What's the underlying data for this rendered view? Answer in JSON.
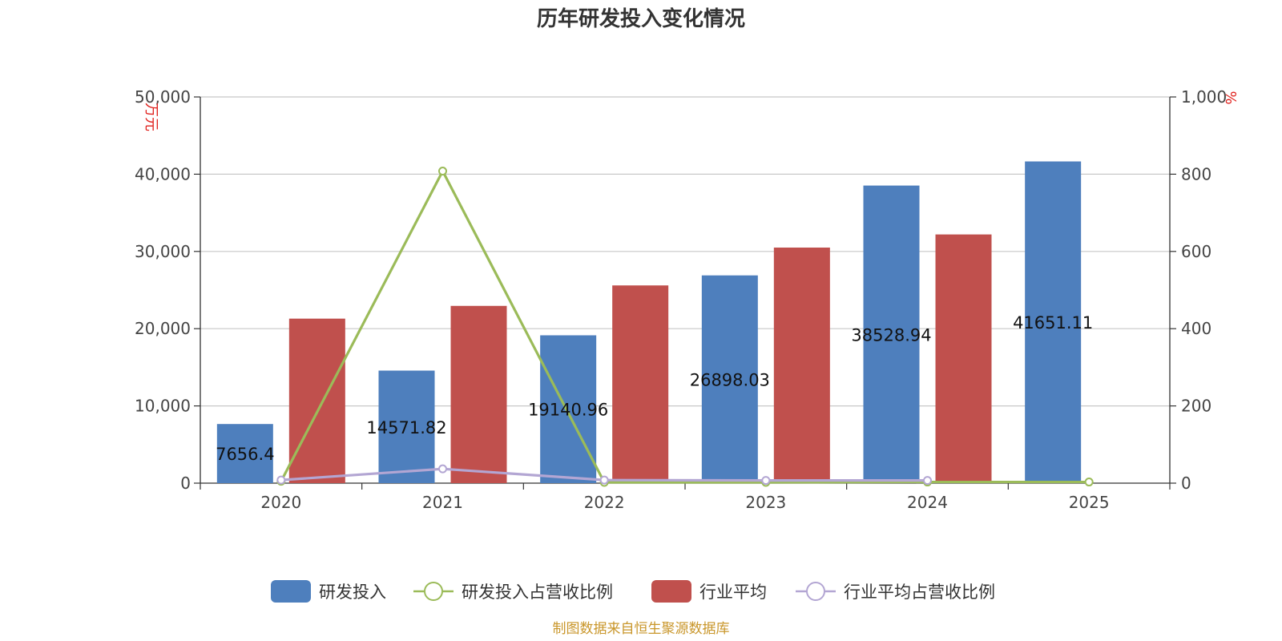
{
  "chart_data": {
    "type": "bar",
    "title": "历年研发投入变化情况",
    "categories": [
      "2020",
      "2021",
      "2022",
      "2023",
      "2024",
      "2025"
    ],
    "y_left": {
      "unit": "万元",
      "min": 0,
      "max": 50000,
      "ticks": [
        "0",
        "10,000",
        "20,000",
        "30,000",
        "40,000",
        "50,000"
      ]
    },
    "y_right": {
      "unit": "%",
      "min": 0,
      "max": 1000,
      "ticks": [
        "0",
        "200",
        "400",
        "600",
        "800",
        "1,000"
      ]
    },
    "grid": true,
    "legend_position": "bottom",
    "series": [
      {
        "name": "研发投入",
        "kind": "bar",
        "axis": "left",
        "color": "#4e7fbd",
        "values": [
          7656.4,
          14571.82,
          19140.96,
          26898.03,
          38528.94,
          41651.11
        ],
        "labels": [
          "7656.4",
          "14571.82",
          "19140.96",
          "26898.03",
          "38528.94",
          "41651.11"
        ]
      },
      {
        "name": "研发投入占营收比例",
        "kind": "line",
        "axis": "right",
        "color": "#9bbb59",
        "values": [
          5,
          808,
          2,
          2,
          3,
          3
        ]
      },
      {
        "name": "行业平均",
        "kind": "bar",
        "axis": "left",
        "color": "#c0504d",
        "values": [
          21300,
          22950,
          25600,
          30500,
          32200,
          null
        ]
      },
      {
        "name": "行业平均占营收比例",
        "kind": "line",
        "axis": "right",
        "color": "#b3a6d3",
        "values": [
          8,
          37,
          8,
          7,
          7,
          null
        ]
      }
    ]
  },
  "source_note": "制图数据来自恒生聚源数据库"
}
